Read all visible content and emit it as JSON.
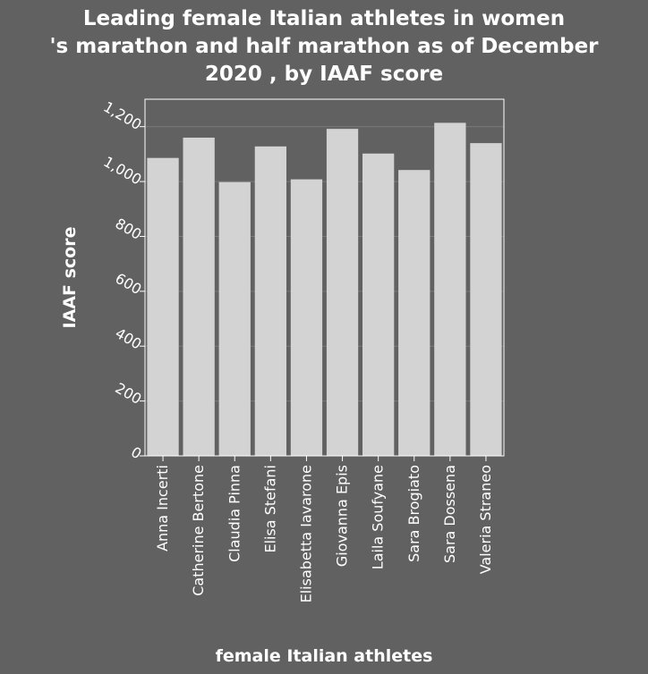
{
  "chart_data": {
    "type": "bar",
    "title_lines": [
      "Leading female Italian athletes in women",
      "'s marathon and half marathon as of December",
      "2020 , by IAAF score"
    ],
    "xlabel": "female Italian athletes",
    "ylabel": "IAAF score",
    "categories": [
      "Anna Incerti",
      "Catherine Bertone",
      "Claudia Pinna",
      "Elisa Stefani",
      "Elisabetta Iavarone",
      "Giovanna Epis",
      "Laila Soufyane",
      "Sara Brogiato",
      "Sara Dossena",
      "Valeria Straneo"
    ],
    "values": [
      1086,
      1160,
      998,
      1128,
      1008,
      1192,
      1102,
      1042,
      1214,
      1140
    ],
    "ylim": [
      0,
      1300
    ],
    "yticks": [
      "0",
      "200",
      "400",
      "600",
      "800",
      "1,000",
      "1,200"
    ],
    "grid": true,
    "colors": {
      "background": "#616161",
      "plot": "#616161",
      "bar": "#d3d3d3",
      "grid": "#7a7a7a",
      "axis": "#ffffff"
    }
  }
}
